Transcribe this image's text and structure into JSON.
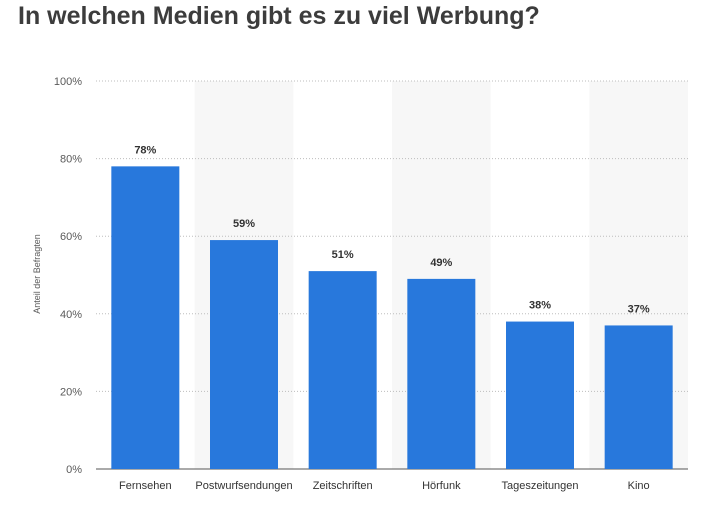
{
  "chart_data": {
    "type": "bar",
    "title": "In welchen Medien gibt es zu viel Werbung?",
    "xlabel": "",
    "ylabel": "Anteil der Befragten",
    "categories": [
      "Fernsehen",
      "Postwurfsendungen",
      "Zeitschriften",
      "Hörfunk",
      "Tageszeitungen",
      "Kino"
    ],
    "values": [
      78,
      59,
      51,
      49,
      38,
      37
    ],
    "data_labels": [
      "78%",
      "59%",
      "51%",
      "49%",
      "38%",
      "37%"
    ],
    "ylim": [
      0,
      100
    ],
    "yticks": [
      0,
      20,
      40,
      60,
      80,
      100
    ],
    "ytick_labels": [
      "0%",
      "20%",
      "40%",
      "60%",
      "80%",
      "100%"
    ],
    "grid": true,
    "bar_color": "#2878dc",
    "band_color": "#f7f7f7"
  }
}
